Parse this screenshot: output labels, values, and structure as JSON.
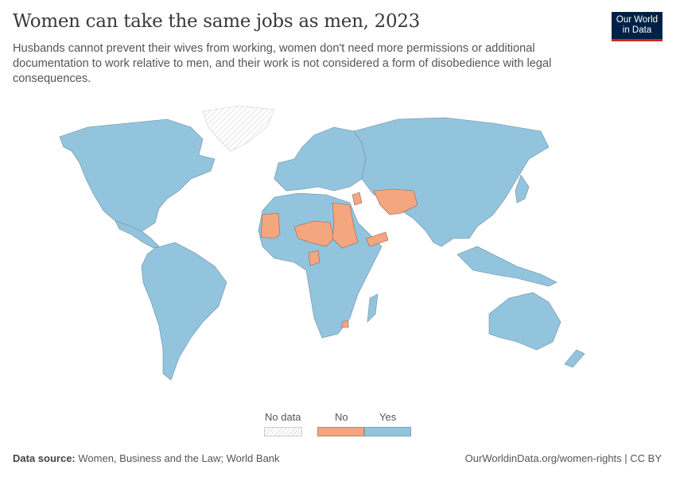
{
  "header": {
    "title": "Women can take the same jobs as men, 2023",
    "subtitle": "Husbands cannot prevent their wives from working, women don't need more permissions or additional documentation to work relative to men, and their work is not considered a form of disobedience with legal consequences.",
    "logo": "Our World in Data"
  },
  "legend": {
    "no_data": "No data",
    "no": "No",
    "yes": "Yes",
    "colors": {
      "no_data": "#ffffff",
      "no": "#f4a67f",
      "yes": "#93c4dd"
    }
  },
  "footer": {
    "source_label": "Data source:",
    "source": "Women, Business and the Law; World Bank",
    "link": "OurWorldinData.org/women-rights | CC BY"
  }
}
